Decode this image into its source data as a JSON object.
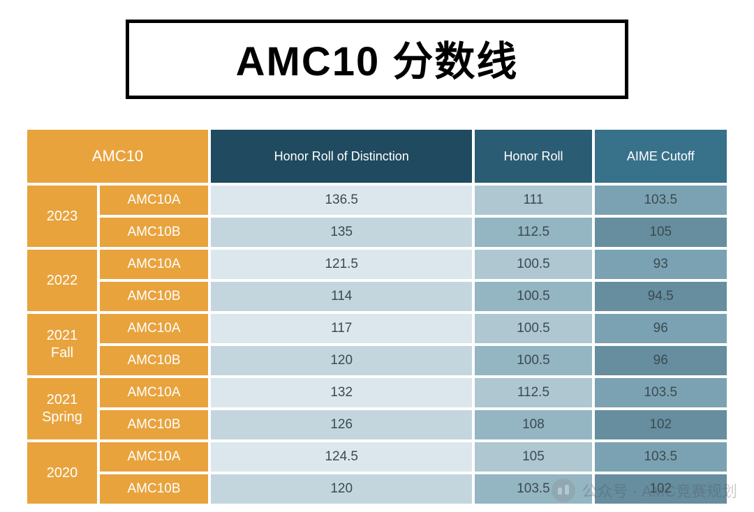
{
  "title": "AMC10 分数线",
  "table": {
    "type": "table",
    "header_left_label": "AMC10",
    "score_columns": [
      {
        "label": "Honor Roll of Distinction",
        "header_bg": "#1f4a5f",
        "shades": [
          "#dbe7ec",
          "#c3d6de"
        ]
      },
      {
        "label": "Honor Roll",
        "header_bg": "#2a5d74",
        "shades": [
          "#aec7d1",
          "#94b5c2"
        ]
      },
      {
        "label": "AIME Cutoff",
        "header_bg": "#38718a",
        "shades": [
          "#7ba2b2",
          "#668e9f"
        ]
      }
    ],
    "left_header_bg": "#e8a33d",
    "year_cell_bg": "#e8a33d",
    "exam_cell_bg": "#e8a33d",
    "left_text_color": "#ffffff",
    "value_text_color": "#3b4a52",
    "years": [
      {
        "label": "2023",
        "rows": [
          {
            "exam": "AMC10A",
            "values": [
              "136.5",
              "111",
              "103.5"
            ]
          },
          {
            "exam": "AMC10B",
            "values": [
              "135",
              "112.5",
              "105"
            ]
          }
        ]
      },
      {
        "label": "2022",
        "rows": [
          {
            "exam": "AMC10A",
            "values": [
              "121.5",
              "100.5",
              "93"
            ]
          },
          {
            "exam": "AMC10B",
            "values": [
              "114",
              "100.5",
              "94.5"
            ]
          }
        ]
      },
      {
        "label": "2021\nFall",
        "rows": [
          {
            "exam": "AMC10A",
            "values": [
              "117",
              "100.5",
              "96"
            ]
          },
          {
            "exam": "AMC10B",
            "values": [
              "120",
              "100.5",
              "96"
            ]
          }
        ]
      },
      {
        "label": "2021\nSpring",
        "rows": [
          {
            "exam": "AMC10A",
            "values": [
              "132",
              "112.5",
              "103.5"
            ]
          },
          {
            "exam": "AMC10B",
            "values": [
              "126",
              "108",
              "102"
            ]
          }
        ]
      },
      {
        "label": "2020",
        "rows": [
          {
            "exam": "AMC10A",
            "values": [
              "124.5",
              "105",
              "103.5"
            ]
          },
          {
            "exam": "AMC10B",
            "values": [
              "120",
              "103.5",
              "102"
            ]
          }
        ]
      }
    ]
  },
  "watermark": {
    "text": "公众号 · AMC竞赛规划",
    "color": "#4a4a4a",
    "opacity": 0.28
  }
}
